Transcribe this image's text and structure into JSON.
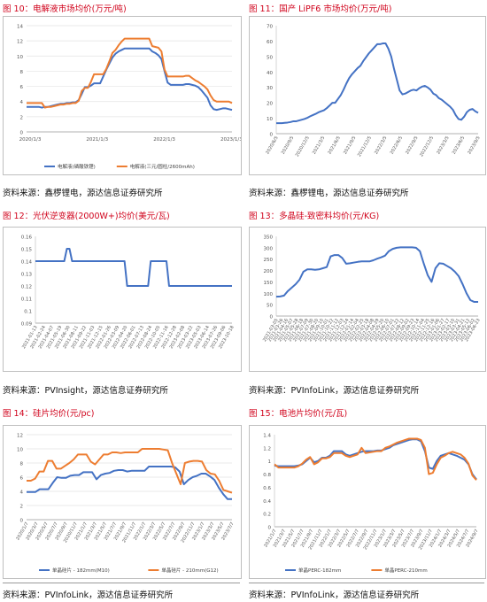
{
  "colors": {
    "blue": "#4472c4",
    "orange": "#ed7d31",
    "title_red": "#d0021b"
  },
  "figures": [
    {
      "title": "图 10：电解液市场均价(万元/吨)",
      "source": "资料来源：鑫椤锂电，源达信息证券研究所"
    },
    {
      "title": "图 11：国产 LiPF6 市场均价(万元/吨)",
      "source": "资料来源：鑫椤锂电，源达信息证券研究所"
    },
    {
      "title": "图 12：光伏逆变器(2000W+)均价(美元/瓦)",
      "source": "资料来源：PVInsight，源达信息证券研究所"
    },
    {
      "title": "图 13：多晶硅-致密料均价(元/KG)",
      "source": "资料来源：PVInfoLink，源达信息证券研究所"
    },
    {
      "title": "图 14：硅片均价(元/pc)",
      "source": "资料来源：PVInfoLink，源达信息证券研究所"
    },
    {
      "title": "图 15：电池片均价(元/瓦)",
      "source": "资料来源：PVInfoLink，源达信息证券研究所"
    }
  ],
  "chart_data": [
    {
      "type": "line",
      "yticks": [
        "0",
        "2",
        "4",
        "6",
        "8",
        "10",
        "12",
        "14"
      ],
      "ylim": [
        0,
        14
      ],
      "xticks": [
        "2020/1/3",
        "2021/1/3",
        "2022/1/3",
        "2023/1/3"
      ],
      "legend_position": "bottom",
      "series": [
        {
          "name": "电解液(磷酸铁锂)",
          "color": "blue",
          "values": [
            3.3,
            3.3,
            3.3,
            3.3,
            3.3,
            3.2,
            3.3,
            3.3,
            3.4,
            3.5,
            3.6,
            3.7,
            3.7,
            3.8,
            3.8,
            3.9,
            3.9,
            4.2,
            5.0,
            5.9,
            5.9,
            6.1,
            6.4,
            6.4,
            6.4,
            7.3,
            8.2,
            9.0,
            9.8,
            10.3,
            10.6,
            10.8,
            11.0,
            11.0,
            11.0,
            11.0,
            11.0,
            11.0,
            11.0,
            11.0,
            11.0,
            10.6,
            10.4,
            10.1,
            9.6,
            8.0,
            6.5,
            6.2,
            6.2,
            6.2,
            6.2,
            6.2,
            6.3,
            6.3,
            6.2,
            6.1,
            5.9,
            5.5,
            5.0,
            4.5,
            3.5,
            3.0,
            2.9,
            3.0,
            3.1,
            3.1,
            3.0,
            2.9
          ]
        },
        {
          "name": "电解液(三元/圆柱/2600mAh)",
          "color": "orange",
          "values": [
            3.8,
            3.8,
            3.8,
            3.8,
            3.8,
            3.8,
            3.2,
            3.3,
            3.3,
            3.4,
            3.5,
            3.6,
            3.6,
            3.7,
            3.7,
            3.8,
            3.8,
            4.1,
            5.4,
            5.8,
            5.8,
            6.6,
            7.6,
            7.6,
            7.6,
            7.6,
            8.3,
            9.3,
            10.4,
            10.8,
            11.4,
            11.9,
            12.3,
            12.3,
            12.3,
            12.3,
            12.3,
            12.3,
            12.3,
            12.3,
            12.3,
            11.3,
            11.2,
            11.1,
            10.6,
            8.2,
            7.3,
            7.3,
            7.3,
            7.3,
            7.3,
            7.3,
            7.4,
            7.4,
            7.1,
            6.8,
            6.6,
            6.3,
            6.0,
            5.6,
            4.8,
            4.2,
            4.0,
            4.0,
            4.0,
            4.0,
            4.0,
            3.8
          ]
        }
      ]
    },
    {
      "type": "line",
      "yticks": [
        "0",
        "10",
        "20",
        "30",
        "40",
        "50",
        "60",
        "70"
      ],
      "ylim": [
        0,
        70
      ],
      "xticks": [
        "2020/6/5",
        "2020/9/5",
        "2020/12/5",
        "2021/3/5",
        "2021/6/5",
        "2021/9/5",
        "2021/12/5",
        "2022/3/5",
        "2022/6/5",
        "2022/9/5",
        "2022/12/5",
        "2023/3/5",
        "2023/6/5",
        "2023/9/5"
      ],
      "series": [
        {
          "name": "",
          "color": "blue",
          "values": [
            6.8,
            6.8,
            6.8,
            7.0,
            7.2,
            7.5,
            8.0,
            8.0,
            8.5,
            9.0,
            9.5,
            10.2,
            11.2,
            12.0,
            12.8,
            13.8,
            14.5,
            15.2,
            16.5,
            18.2,
            20.0,
            20.0,
            22.5,
            25.0,
            28.5,
            32.5,
            36.0,
            38.5,
            40.5,
            42.5,
            44.0,
            47.0,
            49.5,
            52.0,
            54.0,
            56.0,
            58.0,
            58.0,
            58.5,
            58.5,
            55.0,
            50.0,
            42.0,
            35.0,
            28.0,
            25.5,
            26.0,
            27.0,
            28.0,
            28.5,
            28.0,
            29.5,
            30.5,
            31.0,
            30.0,
            28.5,
            26.0,
            25.0,
            23.0,
            22.0,
            20.5,
            19.0,
            17.5,
            15.5,
            12.0,
            9.5,
            9.0,
            11.0,
            14.0,
            15.5,
            16.0,
            14.5,
            13.5
          ]
        }
      ]
    },
    {
      "type": "line",
      "yticks": [
        "0.09",
        "0.1",
        "0.11",
        "0.12",
        "0.13",
        "0.14",
        "0.15",
        "0.16"
      ],
      "ylim": [
        0.09,
        0.16
      ],
      "xticks": [
        "2021-01-13",
        "2021-02-24",
        "2021-04-07",
        "2021-05-19",
        "2021-06-30",
        "2021-08-11",
        "2021-09-22",
        "2021-11-03",
        "2021-12-15",
        "2022-01-26",
        "2022-03-09",
        "2022-04-20",
        "2022-06-01",
        "2022-07-13",
        "2022-08-24",
        "2022-10-05",
        "2022-11-16",
        "2022-12-28",
        "2023-02-08",
        "2023-03-22",
        "2023-05-03",
        "2023-06-14",
        "2023-07-26",
        "2023-09-06",
        "2023-10-18"
      ],
      "series": [
        {
          "name": "",
          "color": "blue",
          "values": [
            0.14,
            0.14,
            0.14,
            0.14,
            0.14,
            0.14,
            0.14,
            0.14,
            0.14,
            0.14,
            0.14,
            0.14,
            0.15,
            0.15,
            0.14,
            0.14,
            0.14,
            0.14,
            0.14,
            0.14,
            0.14,
            0.14,
            0.14,
            0.14,
            0.14,
            0.14,
            0.14,
            0.14,
            0.14,
            0.14,
            0.14,
            0.14,
            0.14,
            0.14,
            0.14,
            0.12,
            0.12,
            0.12,
            0.12,
            0.12,
            0.12,
            0.12,
            0.12,
            0.12,
            0.14,
            0.14,
            0.14,
            0.14,
            0.14,
            0.14,
            0.14,
            0.12,
            0.12,
            0.12,
            0.12,
            0.12,
            0.12,
            0.12,
            0.12,
            0.12,
            0.12,
            0.12,
            0.12,
            0.12,
            0.12,
            0.12,
            0.12,
            0.12,
            0.12,
            0.12,
            0.12,
            0.12,
            0.12,
            0.12,
            0.12,
            0.12
          ]
        }
      ]
    },
    {
      "type": "line",
      "yticks": [
        "0",
        "50",
        "100",
        "150",
        "200",
        "250",
        "300",
        "350"
      ],
      "ylim": [
        0,
        350
      ],
      "xticks": [
        "2021-03-05",
        "2021-03-26",
        "2021-04-16",
        "2021-05-07",
        "2021-05-28",
        "2021-06-18",
        "2021-07-09",
        "2021-07-30",
        "2021-08-20",
        "2021-09-10",
        "2021-10-01",
        "2021-10-22",
        "2021-11-12",
        "2021-12-03",
        "2021-12-24",
        "2022-01-14",
        "2022-02-04",
        "2022-02-25",
        "2022-03-18",
        "2022-04-08",
        "2022-04-29",
        "2022-05-20",
        "2022-06-10",
        "2022-07-01",
        "2022-07-22",
        "2022-08-12",
        "2022-09-02",
        "2022-09-23",
        "2022-10-14",
        "2022-11-04",
        "2022-11-25",
        "2022-12-16",
        "2023-01-06",
        "2023-01-27",
        "2023-02-17",
        "2023-03-10",
        "2023-03-31",
        "2023-04-21",
        "2023-05-12",
        "2023-06-02",
        "2023-06-23"
      ],
      "series": [
        {
          "name": "",
          "color": "blue",
          "values": [
            85,
            86,
            90,
            110,
            125,
            140,
            160,
            195,
            205,
            205,
            203,
            205,
            210,
            215,
            262,
            268,
            268,
            255,
            230,
            232,
            235,
            238,
            240,
            240,
            240,
            245,
            252,
            258,
            265,
            285,
            295,
            300,
            302,
            302,
            302,
            302,
            300,
            285,
            230,
            180,
            150,
            210,
            232,
            230,
            220,
            210,
            195,
            175,
            140,
            100,
            70,
            62,
            62
          ]
        }
      ]
    },
    {
      "type": "line",
      "yticks": [
        "0",
        "2",
        "4",
        "6",
        "8",
        "10",
        "12"
      ],
      "ylim": [
        0,
        12
      ],
      "xticks": [
        "2020/1/7",
        "2020/3/7",
        "2020/5/7",
        "2020/7/7",
        "2020/9/7",
        "2020/11/7",
        "2021/1/7",
        "2021/3/7",
        "2021/5/7",
        "2021/7/7",
        "2021/9/7",
        "2021/11/7",
        "2022/1/7",
        "2022/3/7",
        "2022/5/7",
        "2022/7/7",
        "2022/9/7",
        "2022/11/7",
        "2023/1/7",
        "2023/3/7",
        "2023/5/7",
        "2023/7/7"
      ],
      "legend_position": "bottom",
      "series": [
        {
          "name": "单晶硅片 - 182mm(M10)",
          "color": "blue",
          "values": [
            3.9,
            3.9,
            3.9,
            4.3,
            4.3,
            4.3,
            5.2,
            6.0,
            5.9,
            5.9,
            6.2,
            6.3,
            6.3,
            6.7,
            6.7,
            6.7,
            5.7,
            6.3,
            6.5,
            6.6,
            6.9,
            7.0,
            7.0,
            6.8,
            6.9,
            6.9,
            6.9,
            6.9,
            7.5,
            7.5,
            7.5,
            7.5,
            7.5,
            7.5,
            7.4,
            6.8,
            5.0,
            5.6,
            6.0,
            6.2,
            6.5,
            6.5,
            6.1,
            5.6,
            4.5,
            3.6,
            2.9,
            2.9
          ]
        },
        {
          "name": "单晶硅片 - 210mm(G12)",
          "color": "orange",
          "values": [
            5.5,
            5.5,
            5.8,
            6.8,
            6.8,
            8.3,
            8.3,
            7.2,
            7.2,
            7.6,
            8.0,
            8.5,
            9.2,
            9.2,
            9.2,
            8.2,
            7.8,
            8.5,
            9.2,
            9.2,
            9.5,
            9.5,
            9.4,
            9.5,
            9.5,
            9.5,
            9.5,
            10.0,
            10.0,
            10.0,
            10.0,
            10.0,
            9.9,
            9.8,
            8.0,
            6.5,
            5.0,
            8.0,
            8.2,
            8.3,
            8.3,
            8.2,
            7.0,
            6.5,
            6.4,
            5.5,
            4.2,
            4.0,
            3.8
          ]
        }
      ]
    },
    {
      "type": "line",
      "yticks": [
        "0",
        "0.2",
        "0.4",
        "0.6",
        "0.8",
        "1",
        "1.2",
        "1.4"
      ],
      "ylim": [
        0,
        1.4
      ],
      "xticks": [
        "2021/1/7",
        "2021/3/7",
        "2021/5/7",
        "2021/7/7",
        "2021/9/7",
        "2021/11/7",
        "2022/1/7",
        "2022/3/7",
        "2022/5/7",
        "2022/7/7",
        "2022/9/7",
        "2022/11/7",
        "2023/1/7",
        "2023/3/7",
        "2023/5/7",
        "2023/7/7",
        "2023/9/7",
        "2023/11/7",
        "2024/1/7",
        "2024/3/7",
        "2024/5/7",
        "2024/7/7",
        "2024/9/7"
      ],
      "legend_position": "bottom",
      "series": [
        {
          "name": "单晶PERC-182mm",
          "color": "blue",
          "values": [
            0.93,
            0.92,
            0.92,
            0.92,
            0.92,
            0.92,
            0.93,
            0.95,
            1.0,
            1.05,
            0.98,
            1.0,
            1.05,
            1.05,
            1.08,
            1.15,
            1.15,
            1.15,
            1.1,
            1.08,
            1.1,
            1.12,
            1.14,
            1.15,
            1.15,
            1.15,
            1.16,
            1.16,
            1.18,
            1.2,
            1.24,
            1.26,
            1.28,
            1.3,
            1.32,
            1.33,
            1.33,
            1.3,
            1.15,
            0.9,
            0.88,
            1.0,
            1.08,
            1.1,
            1.12,
            1.1,
            1.08,
            1.05,
            1.02,
            0.95,
            0.8,
            0.72
          ]
        },
        {
          "name": "单晶PERC-210mm",
          "color": "orange",
          "values": [
            0.95,
            0.9,
            0.9,
            0.9,
            0.9,
            0.9,
            0.92,
            0.96,
            1.02,
            1.06,
            0.95,
            0.98,
            1.04,
            1.04,
            1.06,
            1.12,
            1.12,
            1.12,
            1.08,
            1.06,
            1.08,
            1.1,
            1.2,
            1.12,
            1.13,
            1.14,
            1.15,
            1.15,
            1.2,
            1.22,
            1.25,
            1.28,
            1.3,
            1.32,
            1.34,
            1.34,
            1.34,
            1.32,
            1.2,
            0.8,
            0.82,
            0.95,
            1.05,
            1.08,
            1.12,
            1.14,
            1.12,
            1.1,
            1.05,
            0.96,
            0.78,
            0.71
          ]
        }
      ]
    }
  ]
}
